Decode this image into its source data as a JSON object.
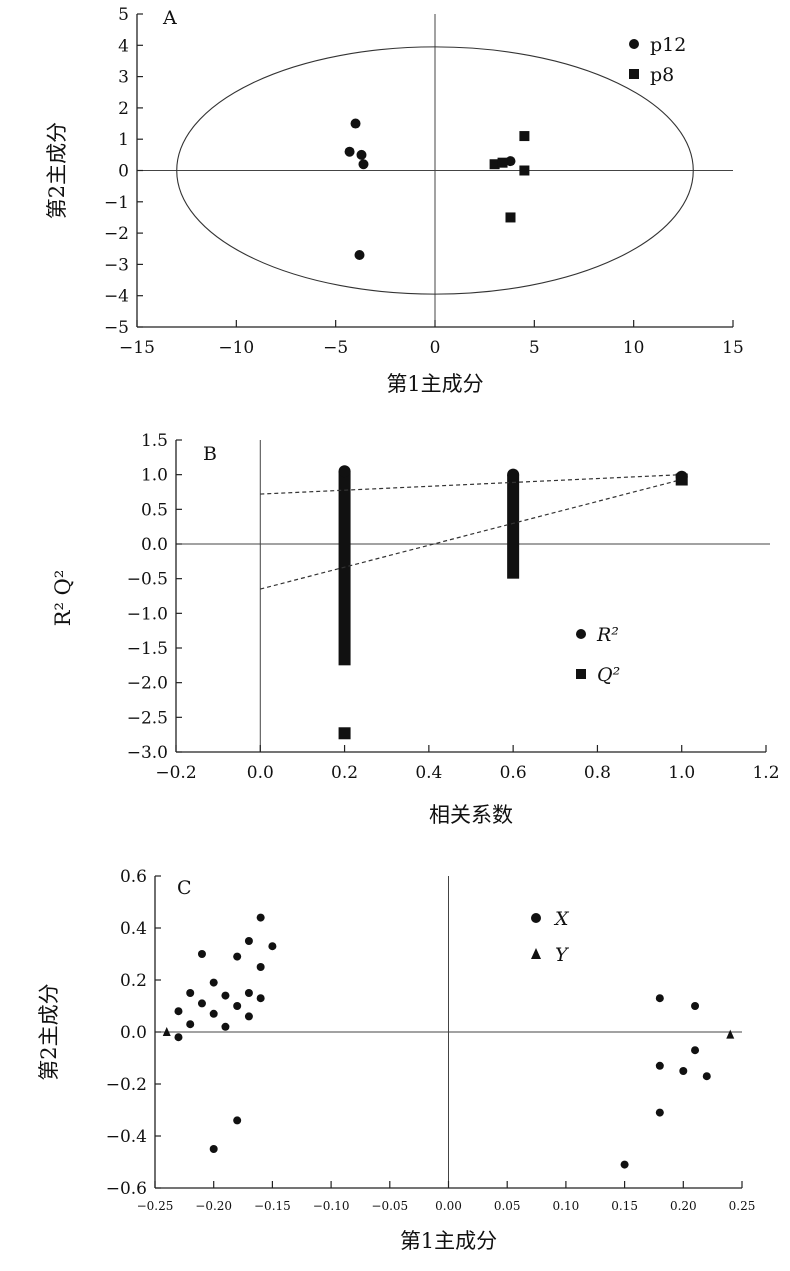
{
  "chart_data": [
    {
      "type": "scatter",
      "panel_label": "A",
      "xlabel": "第1主成分",
      "ylabel": "第2主成分",
      "xlim": [
        -15,
        15
      ],
      "ylim": [
        -5,
        5
      ],
      "xticks": [
        "−15",
        "−10",
        "−5",
        "0",
        "5",
        "10",
        "15"
      ],
      "yticks": [
        "5",
        "4",
        "3",
        "2",
        "1",
        "0",
        "−1",
        "−2",
        "−3",
        "−4",
        "−5"
      ],
      "ellipse": {
        "cx": 0,
        "cy": 0,
        "rx": 13,
        "ry": 3.95
      },
      "legend_position": "top-right",
      "series": [
        {
          "name": "p12",
          "marker": "circle",
          "points": [
            [
              -4,
              1.5
            ],
            [
              -4.3,
              0.6
            ],
            [
              -3.7,
              0.5
            ],
            [
              -3.6,
              0.2
            ],
            [
              -3.8,
              -2.7
            ],
            [
              3.8,
              0.3
            ]
          ]
        },
        {
          "name": "p8",
          "marker": "square",
          "points": [
            [
              3,
              0.2
            ],
            [
              3.4,
              0.25
            ],
            [
              4.5,
              1.1
            ],
            [
              4.5,
              0
            ],
            [
              3.8,
              -1.5
            ]
          ]
        }
      ]
    },
    {
      "type": "scatter",
      "panel_label": "B",
      "xlabel": "相关系数",
      "ylabel": "R² Q²",
      "xlim": [
        -0.2,
        1.2
      ],
      "ylim": [
        -3.0,
        1.5
      ],
      "xticks": [
        "−0.2",
        "0.0",
        "0.2",
        "0.4",
        "0.6",
        "0.8",
        "1.0",
        "1.2"
      ],
      "yticks": [
        "1.5",
        "1.0",
        "0.5",
        "0.0",
        "−0.5",
        "−1.0",
        "−1.5",
        "−2.0",
        "−2.5",
        "−3.0"
      ],
      "legend_position": "right",
      "series": [
        {
          "name": "R²",
          "marker": "circle",
          "points": [
            [
              0.2,
              1.05
            ],
            [
              0.6,
              1.0
            ],
            [
              1.0,
              0.97
            ]
          ],
          "regression": {
            "x": [
              0.0,
              1.0
            ],
            "y": [
              0.72,
              1.0
            ]
          }
        },
        {
          "name": "Q²",
          "marker": "square",
          "points": [
            [
              0.2,
              -2.73
            ],
            [
              1.0,
              0.93
            ]
          ],
          "regression": {
            "x": [
              0.0,
              1.0
            ],
            "y": [
              -0.65,
              0.93
            ]
          }
        }
      ],
      "permutation_bands": [
        {
          "x": 0.2,
          "ymin": -1.75,
          "ymax": 1.05
        },
        {
          "x": 0.6,
          "ymin": -0.5,
          "ymax": 1.0
        }
      ]
    },
    {
      "type": "scatter",
      "panel_label": "C",
      "xlabel": "第1主成分",
      "ylabel": "第2主成分",
      "xlim": [
        -0.25,
        0.25
      ],
      "ylim": [
        -0.6,
        0.6
      ],
      "xticks": [
        "−0.25",
        "−0.20",
        "−0.15",
        "−0.10",
        "−0.05",
        "0.00",
        "0.05",
        "0.10",
        "0.15",
        "0.20",
        "0.25"
      ],
      "yticks": [
        "0.6",
        "0.4",
        "0.2",
        "0.0",
        "−0.2",
        "−0.4",
        "−0.6"
      ],
      "legend_position": "top-right",
      "series": [
        {
          "name": "X",
          "marker": "circle",
          "points": [
            [
              -0.16,
              0.44
            ],
            [
              -0.17,
              0.35
            ],
            [
              -0.15,
              0.33
            ],
            [
              -0.21,
              0.3
            ],
            [
              -0.18,
              0.29
            ],
            [
              -0.16,
              0.25
            ],
            [
              -0.2,
              0.19
            ],
            [
              -0.22,
              0.15
            ],
            [
              -0.17,
              0.15
            ],
            [
              -0.19,
              0.14
            ],
            [
              -0.16,
              0.13
            ],
            [
              -0.21,
              0.11
            ],
            [
              -0.18,
              0.1
            ],
            [
              -0.23,
              0.08
            ],
            [
              -0.2,
              0.07
            ],
            [
              -0.17,
              0.06
            ],
            [
              -0.22,
              0.03
            ],
            [
              -0.19,
              0.02
            ],
            [
              -0.23,
              -0.02
            ],
            [
              -0.18,
              -0.34
            ],
            [
              -0.2,
              -0.45
            ],
            [
              0.18,
              0.13
            ],
            [
              0.21,
              0.1
            ],
            [
              0.21,
              -0.07
            ],
            [
              0.18,
              -0.13
            ],
            [
              0.2,
              -0.15
            ],
            [
              0.22,
              -0.17
            ],
            [
              0.18,
              -0.31
            ],
            [
              0.15,
              -0.51
            ]
          ]
        },
        {
          "name": "Y",
          "marker": "triangle",
          "points": [
            [
              0.24,
              -0.01
            ],
            [
              -0.24,
              0.0
            ]
          ]
        }
      ]
    }
  ]
}
